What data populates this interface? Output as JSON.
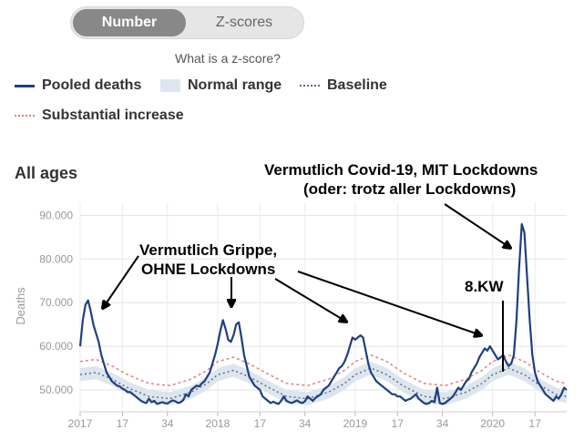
{
  "toggle": {
    "number_label": "Number",
    "zscores_label": "Z-scores"
  },
  "zscore_link": "What is a z-score?",
  "legend": {
    "pooled": "Pooled deaths",
    "normal": "Normal range",
    "baseline": "Baseline",
    "substantial": "Substantial increase"
  },
  "section_title": "All ages",
  "colors": {
    "pooled": "#1f3f7f",
    "normal_band": "#dde6ee",
    "baseline": "#5a6f84",
    "substantial": "#e08080"
  },
  "annotations": {
    "covid_line1": "Vermutlich Covid-19, MIT Lockdowns",
    "covid_line2": "(oder: trotz aller Lockdowns)",
    "flu_line1": "Vermutlich Grippe,",
    "flu_line2": "OHNE Lockdowns",
    "kw8": "8.KW"
  },
  "chart_data": {
    "type": "line",
    "ylabel": "Deaths",
    "ylim": [
      45000,
      93000
    ],
    "yticks": [
      50000,
      60000,
      70000,
      80000,
      90000
    ],
    "ytick_labels": [
      "50.000",
      "60.000",
      "70.000",
      "80.000",
      "90.000"
    ],
    "xticks": [
      {
        "t": 0,
        "label": "2017"
      },
      {
        "t": 16,
        "label": "17"
      },
      {
        "t": 33,
        "label": "34"
      },
      {
        "t": 52,
        "label": "2018"
      },
      {
        "t": 68,
        "label": "17"
      },
      {
        "t": 85,
        "label": "34"
      },
      {
        "t": 104,
        "label": "2019"
      },
      {
        "t": 120,
        "label": "17"
      },
      {
        "t": 137,
        "label": "34"
      },
      {
        "t": 156,
        "label": "2020"
      },
      {
        "t": 172,
        "label": "17"
      }
    ],
    "xlim": [
      0,
      184
    ],
    "grid": true,
    "series": [
      {
        "name": "Pooled deaths",
        "points": [
          [
            0,
            60000
          ],
          [
            1,
            66000
          ],
          [
            2,
            69500
          ],
          [
            3,
            70500
          ],
          [
            4,
            68000
          ],
          [
            5,
            65000
          ],
          [
            6,
            63000
          ],
          [
            7,
            61000
          ],
          [
            8,
            58000
          ],
          [
            9,
            56000
          ],
          [
            10,
            54000
          ],
          [
            11,
            53000
          ],
          [
            12,
            52000
          ],
          [
            13,
            51500
          ],
          [
            14,
            51000
          ],
          [
            15,
            50800
          ],
          [
            16,
            50300
          ],
          [
            17,
            50000
          ],
          [
            18,
            49500
          ],
          [
            19,
            49500
          ],
          [
            20,
            49000
          ],
          [
            21,
            48500
          ],
          [
            22,
            48000
          ],
          [
            23,
            47500
          ],
          [
            24,
            47200
          ],
          [
            25,
            47000
          ],
          [
            26,
            48000
          ],
          [
            27,
            47200
          ],
          [
            28,
            47500
          ],
          [
            29,
            46800
          ],
          [
            30,
            47000
          ],
          [
            31,
            47200
          ],
          [
            32,
            47000
          ],
          [
            33,
            46900
          ],
          [
            34,
            47300
          ],
          [
            35,
            47600
          ],
          [
            36,
            47400
          ],
          [
            37,
            47000
          ],
          [
            38,
            47200
          ],
          [
            39,
            47700
          ],
          [
            40,
            49000
          ],
          [
            41,
            48500
          ],
          [
            42,
            50000
          ],
          [
            43,
            50500
          ],
          [
            44,
            51000
          ],
          [
            45,
            50800
          ],
          [
            46,
            51500
          ],
          [
            47,
            52000
          ],
          [
            48,
            53000
          ],
          [
            49,
            54000
          ],
          [
            50,
            56000
          ],
          [
            51,
            58000
          ],
          [
            52,
            60500
          ],
          [
            53,
            63500
          ],
          [
            54,
            66000
          ],
          [
            55,
            64000
          ],
          [
            56,
            61500
          ],
          [
            57,
            61000
          ],
          [
            58,
            62500
          ],
          [
            59,
            65000
          ],
          [
            60,
            65500
          ],
          [
            61,
            62000
          ],
          [
            62,
            58000
          ],
          [
            63,
            55500
          ],
          [
            64,
            53000
          ],
          [
            65,
            52000
          ],
          [
            66,
            51000
          ],
          [
            67,
            50500
          ],
          [
            68,
            50000
          ],
          [
            69,
            48500
          ],
          [
            70,
            48000
          ],
          [
            71,
            47500
          ],
          [
            72,
            47000
          ],
          [
            73,
            47300
          ],
          [
            74,
            47000
          ],
          [
            75,
            46800
          ],
          [
            76,
            47500
          ],
          [
            77,
            48500
          ],
          [
            78,
            47500
          ],
          [
            79,
            47200
          ],
          [
            80,
            47000
          ],
          [
            81,
            47300
          ],
          [
            82,
            47600
          ],
          [
            83,
            47200
          ],
          [
            84,
            47000
          ],
          [
            85,
            47400
          ],
          [
            86,
            48500
          ],
          [
            87,
            48000
          ],
          [
            88,
            47500
          ],
          [
            89,
            48200
          ],
          [
            90,
            48600
          ],
          [
            91,
            49000
          ],
          [
            92,
            50000
          ],
          [
            93,
            50500
          ],
          [
            94,
            51000
          ],
          [
            95,
            52000
          ],
          [
            96,
            53000
          ],
          [
            97,
            54000
          ],
          [
            98,
            55000
          ],
          [
            99,
            55500
          ],
          [
            100,
            56500
          ],
          [
            101,
            58000
          ],
          [
            102,
            60000
          ],
          [
            103,
            62000
          ],
          [
            104,
            61500
          ],
          [
            105,
            62000
          ],
          [
            106,
            62500
          ],
          [
            107,
            62000
          ],
          [
            108,
            59000
          ],
          [
            109,
            56000
          ],
          [
            110,
            54000
          ],
          [
            111,
            53000
          ],
          [
            112,
            52000
          ],
          [
            113,
            51500
          ],
          [
            114,
            51000
          ],
          [
            115,
            50500
          ],
          [
            116,
            50000
          ],
          [
            117,
            49500
          ],
          [
            118,
            49000
          ],
          [
            119,
            49000
          ],
          [
            120,
            48500
          ],
          [
            121,
            48500
          ],
          [
            122,
            48000
          ],
          [
            123,
            47500
          ],
          [
            124,
            47800
          ],
          [
            125,
            48000
          ],
          [
            126,
            48500
          ],
          [
            127,
            49000
          ],
          [
            128,
            48000
          ],
          [
            129,
            47500
          ],
          [
            130,
            47000
          ],
          [
            131,
            46800
          ],
          [
            132,
            47000
          ],
          [
            133,
            47500
          ],
          [
            134,
            47200
          ],
          [
            135,
            50500
          ],
          [
            136,
            47000
          ],
          [
            137,
            46800
          ],
          [
            138,
            47000
          ],
          [
            139,
            47500
          ],
          [
            140,
            48000
          ],
          [
            141,
            48500
          ],
          [
            142,
            49500
          ],
          [
            143,
            50500
          ],
          [
            144,
            50000
          ],
          [
            145,
            51000
          ],
          [
            146,
            52000
          ],
          [
            147,
            52500
          ],
          [
            148,
            54000
          ],
          [
            149,
            55000
          ],
          [
            150,
            56000
          ],
          [
            151,
            57500
          ],
          [
            152,
            58500
          ],
          [
            153,
            59500
          ],
          [
            154,
            59000
          ],
          [
            155,
            60000
          ],
          [
            156,
            59000
          ],
          [
            157,
            58000
          ],
          [
            158,
            57000
          ],
          [
            159,
            57500
          ],
          [
            160,
            58000
          ],
          [
            161,
            56500
          ],
          [
            162,
            55500
          ],
          [
            163,
            56000
          ],
          [
            164,
            58000
          ],
          [
            165,
            66000
          ],
          [
            166,
            78000
          ],
          [
            167,
            88000
          ],
          [
            168,
            86000
          ],
          [
            169,
            76000
          ],
          [
            170,
            66000
          ],
          [
            171,
            58000
          ],
          [
            172,
            54000
          ],
          [
            173,
            52000
          ],
          [
            174,
            51000
          ],
          [
            175,
            50000
          ],
          [
            176,
            49000
          ],
          [
            177,
            48500
          ],
          [
            178,
            48000
          ],
          [
            179,
            47500
          ],
          [
            180,
            48500
          ],
          [
            181,
            48000
          ],
          [
            182,
            49000
          ],
          [
            183,
            50500
          ],
          [
            184,
            50000
          ]
        ]
      },
      {
        "name": "Baseline",
        "points": [
          [
            0,
            53500
          ],
          [
            6,
            54000
          ],
          [
            12,
            52500
          ],
          [
            18,
            50500
          ],
          [
            26,
            48500
          ],
          [
            34,
            48000
          ],
          [
            42,
            49500
          ],
          [
            48,
            51500
          ],
          [
            52,
            53500
          ],
          [
            58,
            54500
          ],
          [
            64,
            53000
          ],
          [
            70,
            51000
          ],
          [
            78,
            48500
          ],
          [
            86,
            48000
          ],
          [
            94,
            49500
          ],
          [
            100,
            51500
          ],
          [
            104,
            53500
          ],
          [
            110,
            55000
          ],
          [
            116,
            53500
          ],
          [
            122,
            51000
          ],
          [
            130,
            48500
          ],
          [
            138,
            48000
          ],
          [
            146,
            49500
          ],
          [
            152,
            51500
          ],
          [
            156,
            53500
          ],
          [
            162,
            55000
          ],
          [
            168,
            53500
          ],
          [
            174,
            51000
          ],
          [
            180,
            49000
          ],
          [
            184,
            48500
          ]
        ]
      },
      {
        "name": "Substantial increase",
        "points": [
          [
            0,
            56500
          ],
          [
            6,
            57000
          ],
          [
            12,
            55500
          ],
          [
            18,
            53500
          ],
          [
            26,
            51500
          ],
          [
            34,
            51000
          ],
          [
            42,
            52500
          ],
          [
            48,
            54500
          ],
          [
            52,
            56500
          ],
          [
            58,
            57500
          ],
          [
            64,
            56000
          ],
          [
            70,
            54000
          ],
          [
            78,
            51500
          ],
          [
            86,
            51000
          ],
          [
            94,
            52500
          ],
          [
            100,
            54500
          ],
          [
            104,
            56500
          ],
          [
            110,
            58000
          ],
          [
            116,
            56500
          ],
          [
            122,
            54000
          ],
          [
            130,
            51500
          ],
          [
            138,
            51000
          ],
          [
            146,
            52500
          ],
          [
            152,
            54500
          ],
          [
            156,
            56500
          ],
          [
            162,
            58000
          ],
          [
            168,
            56500
          ],
          [
            174,
            54000
          ],
          [
            180,
            52000
          ],
          [
            184,
            51500
          ]
        ]
      }
    ]
  }
}
